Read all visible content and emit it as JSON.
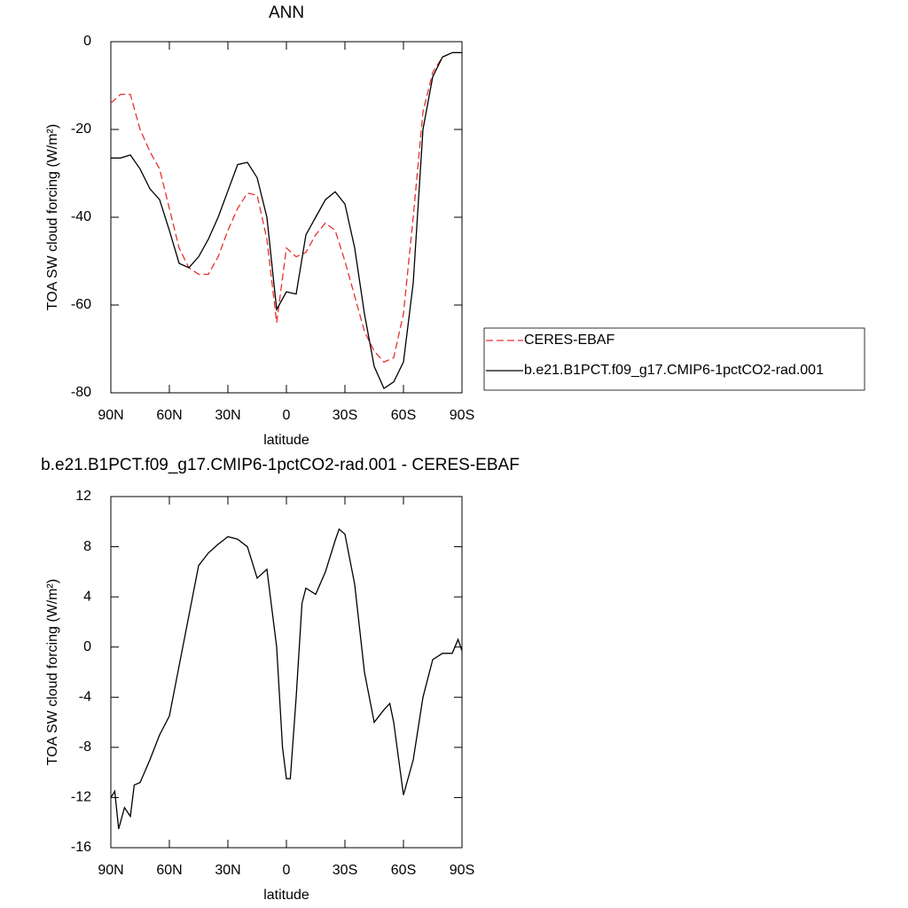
{
  "chart_data": [
    {
      "type": "line",
      "title": "ANN",
      "xlabel": "latitude",
      "ylabel": "TOA SW cloud forcing (W/m²)",
      "x": [
        90,
        85,
        80,
        75,
        70,
        65,
        60,
        55,
        50,
        45,
        40,
        35,
        30,
        25,
        20,
        15,
        10,
        5,
        0,
        -5,
        -10,
        -15,
        -20,
        -25,
        -30,
        -35,
        -40,
        -45,
        -50,
        -55,
        -60,
        -65,
        -70,
        -75,
        -80,
        -85,
        -90
      ],
      "series": [
        {
          "name": "CERES-EBAF",
          "color": "#e8312e",
          "linestyle": "dashed",
          "values": [
            -14,
            -12,
            -12,
            -20,
            -25,
            -29,
            -38,
            -47,
            -51.5,
            -53,
            -53,
            -49,
            -43,
            -38,
            -34.5,
            -35,
            -45,
            -64,
            -47,
            -49,
            -48,
            -44,
            -41.3,
            -43,
            -50,
            -58,
            -66,
            -70.5,
            -73,
            -72,
            -62,
            -40,
            -16,
            -7,
            -3.5,
            -2.5,
            -2.5
          ]
        },
        {
          "name": "b.e21.B1PCT.f09_g17.CMIP6-1pctCO2-rad.001",
          "color": "#000000",
          "linestyle": "solid",
          "values": [
            -26.5,
            -26.5,
            -25.8,
            -29,
            -33.5,
            -36,
            -43,
            -50.5,
            -51.5,
            -49,
            -45,
            -40,
            -34,
            -28,
            -27.5,
            -31,
            -40,
            -61,
            -57,
            -57.5,
            -44,
            -40,
            -36,
            -34.2,
            -37,
            -47,
            -62,
            -74,
            -79,
            -77.5,
            -73,
            -55,
            -20,
            -8,
            -3.5,
            -2.5,
            -2.5
          ]
        }
      ],
      "xlim": [
        90,
        -90
      ],
      "xticks": [
        {
          "value": 90,
          "label": "90N"
        },
        {
          "value": 60,
          "label": "60N"
        },
        {
          "value": 30,
          "label": "30N"
        },
        0,
        {
          "value": -30,
          "label": "30S"
        },
        {
          "value": -60,
          "label": "60S"
        },
        {
          "value": -90,
          "label": "90S"
        }
      ],
      "ylim": [
        -80,
        0
      ],
      "yticks": [
        -80,
        -60,
        -40,
        -20,
        0
      ],
      "grid": false,
      "legend": "right"
    },
    {
      "type": "line",
      "title": "b.e21.B1PCT.f09_g17.CMIP6-1pctCO2-rad.001 - CERES-EBAF",
      "xlabel": "latitude",
      "ylabel": "TOA SW cloud forcing (W/m²)",
      "x": [
        90,
        88,
        86,
        83,
        80,
        78,
        75,
        70,
        65,
        60,
        55,
        50,
        45,
        40,
        35,
        30,
        25,
        20,
        15,
        10,
        5,
        2,
        0,
        -2,
        -5,
        -8,
        -10,
        -15,
        -20,
        -25,
        -27,
        -30,
        -35,
        -40,
        -45,
        -50,
        -53,
        -55,
        -60,
        -65,
        -70,
        -75,
        -80,
        -85,
        -88,
        -90
      ],
      "series": [
        {
          "name": "b.e21.B1PCT.f09_g17.CMIP6-1pctCO2-rad.001 - CERES-EBAF",
          "color": "#000000",
          "linestyle": "solid",
          "values": [
            -12,
            -11.5,
            -14.5,
            -12.8,
            -13.5,
            -11,
            -10.8,
            -9,
            -7,
            -5.5,
            -1.5,
            2.5,
            6.5,
            7.5,
            8.2,
            8.8,
            8.6,
            8,
            5.5,
            6.2,
            0,
            -8,
            -10.5,
            -10.5,
            -4,
            3.5,
            4.7,
            4.2,
            6,
            8.5,
            9.4,
            9,
            5,
            -2,
            -6,
            -5,
            -4.5,
            -6,
            -11.8,
            -9,
            -4,
            -1,
            -0.5,
            -0.5,
            0.6,
            -0.3
          ]
        }
      ],
      "xlim": [
        90,
        -90
      ],
      "xticks": [
        {
          "value": 90,
          "label": "90N"
        },
        {
          "value": 60,
          "label": "60N"
        },
        {
          "value": 30,
          "label": "30N"
        },
        0,
        {
          "value": -30,
          "label": "30S"
        },
        {
          "value": -60,
          "label": "60S"
        },
        {
          "value": -90,
          "label": "90S"
        }
      ],
      "ylim": [
        -16,
        12
      ],
      "yticks": [
        -16,
        -12,
        -8,
        -4,
        0,
        4,
        8,
        12
      ],
      "grid": false
    }
  ]
}
